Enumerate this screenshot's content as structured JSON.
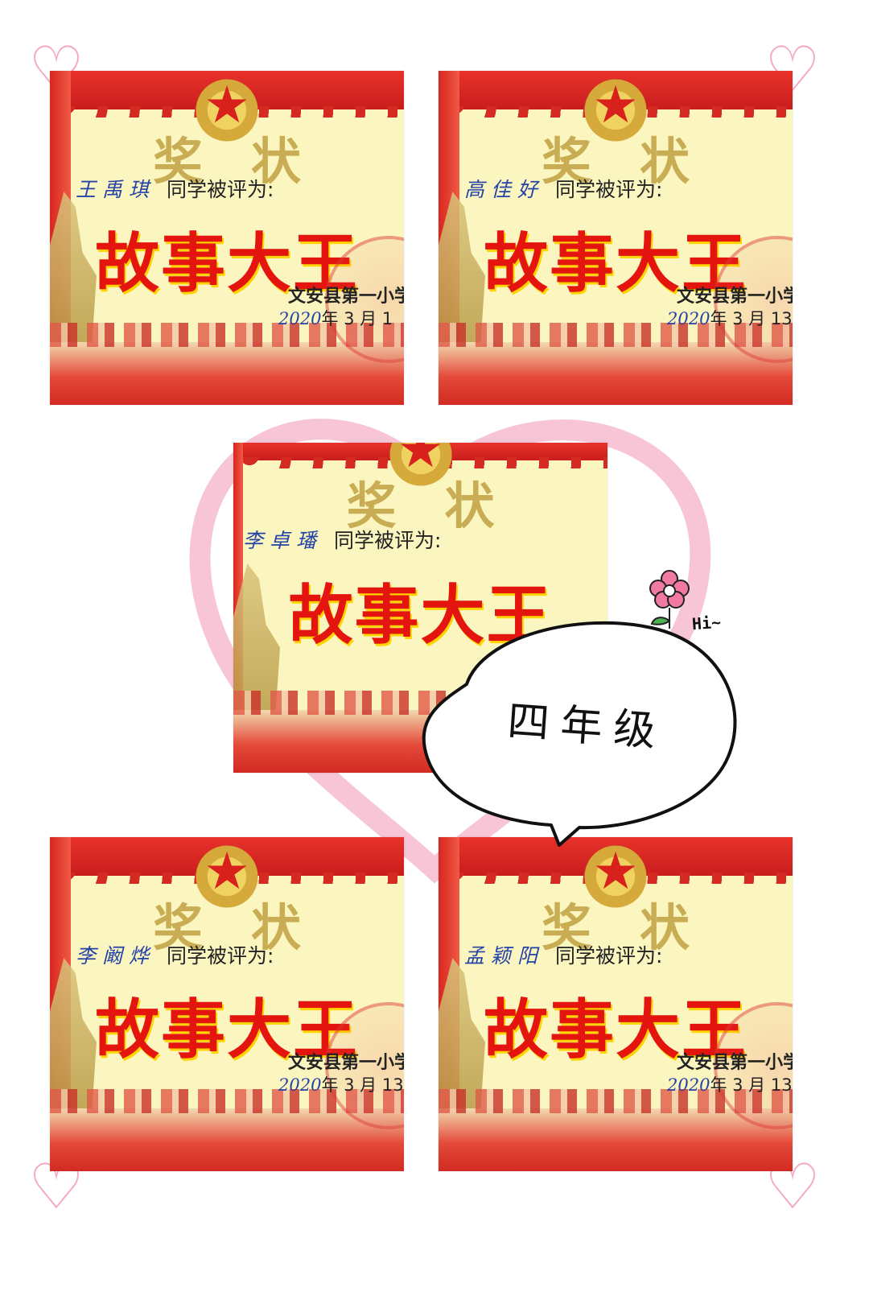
{
  "certificates": [
    {
      "title": "奖状",
      "student": "王禹琪",
      "phrase": "同学被评为:",
      "award": "故事大王",
      "school": "文安县第一小学",
      "date_prefix": "2020",
      "date_text": "年 3 月 1"
    },
    {
      "title": "奖状",
      "student": "高佳好",
      "phrase": "同学被评为:",
      "award": "故事大王",
      "school": "文安县第一小学",
      "date_prefix": "2020",
      "date_text": "年 3 月 13"
    },
    {
      "title": "奖状",
      "student": "李卓璠",
      "phrase": "同学被评为:",
      "award": "故事大王",
      "school": "",
      "date_prefix": "",
      "date_text": ""
    },
    {
      "title": "奖状",
      "student": "李阚烨",
      "phrase": "同学被评为:",
      "award": "故事大王",
      "school": "文安县第一小学",
      "date_prefix": "2020",
      "date_text": "年 3 月 13"
    },
    {
      "title": "奖状",
      "student": "孟颖阳",
      "phrase": "同学被评为:",
      "award": "故事大王",
      "school": "文安县第一小学",
      "date_prefix": "2020",
      "date_text": "年 3 月 13"
    }
  ],
  "bubble": {
    "text": "四年级"
  },
  "sticker": {
    "hi": "Hi~"
  },
  "colors": {
    "heart": "#f08aaa",
    "award_red": "#e4150f",
    "flag_red": "#d8261f"
  }
}
